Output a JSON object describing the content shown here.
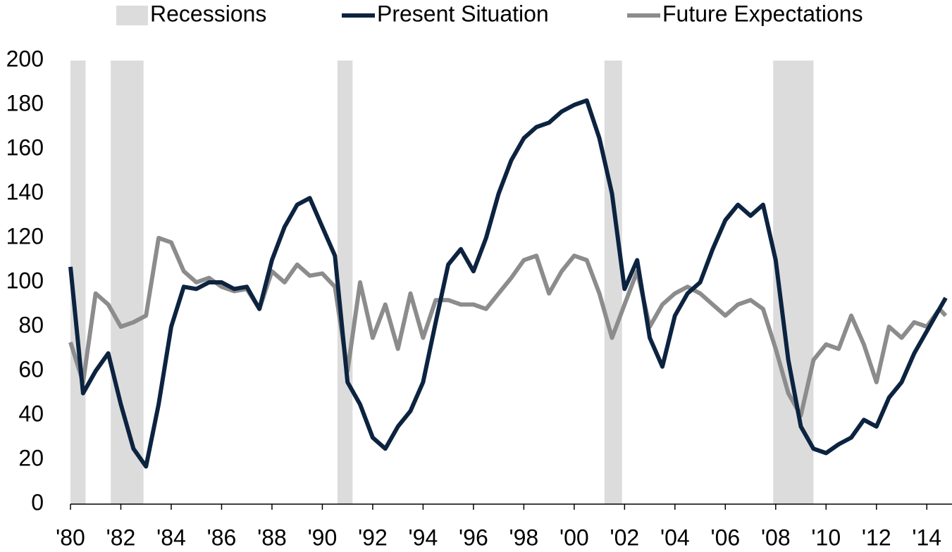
{
  "chart_data": {
    "type": "line",
    "recessions": {
      "name": "Recessions",
      "color": "#dcdcdc",
      "periods": [
        [
          1980.0,
          1980.6
        ],
        [
          1981.6,
          1982.9
        ],
        [
          1990.6,
          1991.2
        ],
        [
          2001.2,
          2001.9
        ],
        [
          2007.9,
          2009.5
        ]
      ]
    },
    "x": [
      1980.0,
      1980.5,
      1981.0,
      1981.5,
      1982.0,
      1982.5,
      1983.0,
      1983.5,
      1984.0,
      1984.5,
      1985.0,
      1985.5,
      1986.0,
      1986.5,
      1987.0,
      1987.5,
      1988.0,
      1988.5,
      1989.0,
      1989.5,
      1990.0,
      1990.5,
      1991.0,
      1991.5,
      1992.0,
      1992.5,
      1993.0,
      1993.5,
      1994.0,
      1994.5,
      1995.0,
      1995.5,
      1996.0,
      1996.5,
      1997.0,
      1997.5,
      1998.0,
      1998.5,
      1999.0,
      1999.5,
      2000.0,
      2000.5,
      2001.0,
      2001.5,
      2002.0,
      2002.5,
      2003.0,
      2003.5,
      2004.0,
      2004.5,
      2005.0,
      2005.5,
      2006.0,
      2006.5,
      2007.0,
      2007.5,
      2008.0,
      2008.5,
      2009.0,
      2009.5,
      2010.0,
      2010.5,
      2011.0,
      2011.5,
      2012.0,
      2012.5,
      2013.0,
      2013.5,
      2014.0,
      2014.5,
      2014.75
    ],
    "series": [
      {
        "name": "Present Situation",
        "color": "#0c2340",
        "values": [
          107,
          50,
          60,
          68,
          45,
          25,
          17,
          45,
          80,
          98,
          97,
          100,
          100,
          97,
          98,
          88,
          110,
          125,
          135,
          138,
          125,
          112,
          55,
          45,
          30,
          25,
          35,
          42,
          55,
          82,
          108,
          115,
          105,
          120,
          140,
          155,
          165,
          170,
          172,
          177,
          180,
          182,
          165,
          140,
          97,
          110,
          75,
          62,
          85,
          95,
          100,
          115,
          128,
          135,
          130,
          135,
          110,
          65,
          35,
          25,
          23,
          27,
          30,
          38,
          35,
          48,
          55,
          68,
          78,
          88,
          93
        ]
      },
      {
        "name": "Future Expectations",
        "color": "#8c8c8c",
        "values": [
          73,
          55,
          95,
          90,
          80,
          82,
          85,
          120,
          118,
          105,
          100,
          102,
          98,
          96,
          97,
          88,
          105,
          100,
          108,
          103,
          104,
          98,
          60,
          100,
          75,
          90,
          70,
          95,
          75,
          92,
          92,
          90,
          90,
          88,
          95,
          102,
          110,
          112,
          95,
          105,
          112,
          110,
          95,
          75,
          90,
          105,
          80,
          90,
          95,
          98,
          95,
          90,
          85,
          90,
          92,
          88,
          70,
          50,
          40,
          65,
          72,
          70,
          85,
          72,
          55,
          80,
          75,
          82,
          80,
          88,
          85
        ]
      }
    ],
    "xlim": [
      1980,
      2015
    ],
    "xticks": [
      {
        "value": 1980,
        "label": "'80"
      },
      {
        "value": 1982,
        "label": "'82"
      },
      {
        "value": 1984,
        "label": "'84"
      },
      {
        "value": 1986,
        "label": "'86"
      },
      {
        "value": 1988,
        "label": "'88"
      },
      {
        "value": 1990,
        "label": "'90"
      },
      {
        "value": 1992,
        "label": "'92"
      },
      {
        "value": 1994,
        "label": "'94"
      },
      {
        "value": 1996,
        "label": "'96"
      },
      {
        "value": 1998,
        "label": "'98"
      },
      {
        "value": 2000,
        "label": "'00"
      },
      {
        "value": 2002,
        "label": "'02"
      },
      {
        "value": 2004,
        "label": "'04"
      },
      {
        "value": 2006,
        "label": "'06"
      },
      {
        "value": 2008,
        "label": "'08"
      },
      {
        "value": 2010,
        "label": "'10"
      },
      {
        "value": 2012,
        "label": "'12"
      },
      {
        "value": 2014,
        "label": "'14"
      }
    ],
    "ylim": [
      0,
      200
    ],
    "yticks": [
      0,
      20,
      40,
      60,
      80,
      100,
      120,
      140,
      160,
      180,
      200
    ],
    "grid": false
  }
}
